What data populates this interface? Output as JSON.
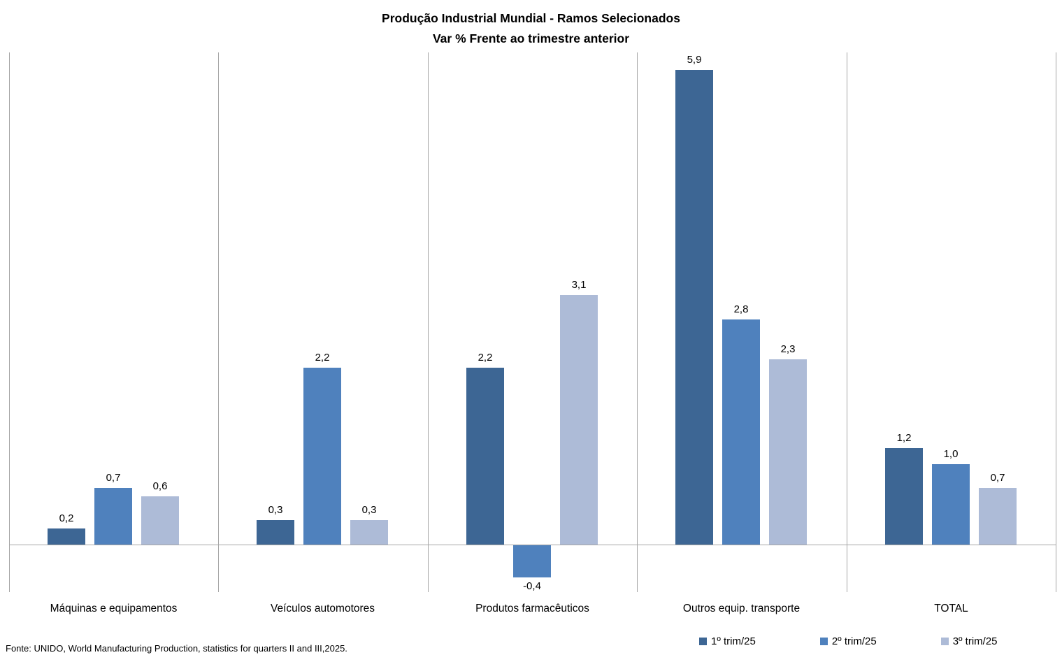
{
  "title": {
    "line1": "Produção Industrial Mundial - Ramos Selecionados",
    "line2": "Var % Frente ao trimestre anterior"
  },
  "footer": {
    "source": "Fonte: UNIDO, World Manufacturing Production,  statistics for quarters II and III,2025."
  },
  "chart_data": {
    "type": "bar",
    "title": "Produção Industrial Mundial - Ramos Selecionados",
    "subtitle": "Var % Frente ao trimestre anterior",
    "categories": [
      "Máquinas e equipamentos",
      "Veículos automotores",
      "Produtos farmacêuticos",
      "Outros equip. transporte",
      "TOTAL"
    ],
    "series": [
      {
        "name": "1º trim/25",
        "color": "#3D6694",
        "values": [
          0.2,
          0.3,
          2.2,
          5.9,
          1.2
        ],
        "labels": [
          "0,2",
          "0,3",
          "2,2",
          "5,9",
          "1,2"
        ]
      },
      {
        "name": "2º trim/25",
        "color": "#4F81BD",
        "values": [
          0.7,
          2.2,
          -0.4,
          2.8,
          1.0
        ],
        "labels": [
          "0,7",
          "2,2",
          "-0,4",
          "2,8",
          "1,0"
        ]
      },
      {
        "name": "3º trim/25",
        "color": "#ADBBD7",
        "values": [
          0.6,
          0.3,
          3.1,
          2.3,
          0.7
        ],
        "labels": [
          "0,6",
          "0,3",
          "3,1",
          "2,3",
          "0,7"
        ]
      }
    ],
    "ylabel": "",
    "xlabel": "",
    "ylim": [
      -0.6,
      6.1
    ],
    "grid": "vertical category separators only",
    "data_labels": true,
    "decimal_separator": ",",
    "legend_position": "bottom-right",
    "axis_color": "#A6A6A6",
    "background": "#FFFFFF"
  }
}
